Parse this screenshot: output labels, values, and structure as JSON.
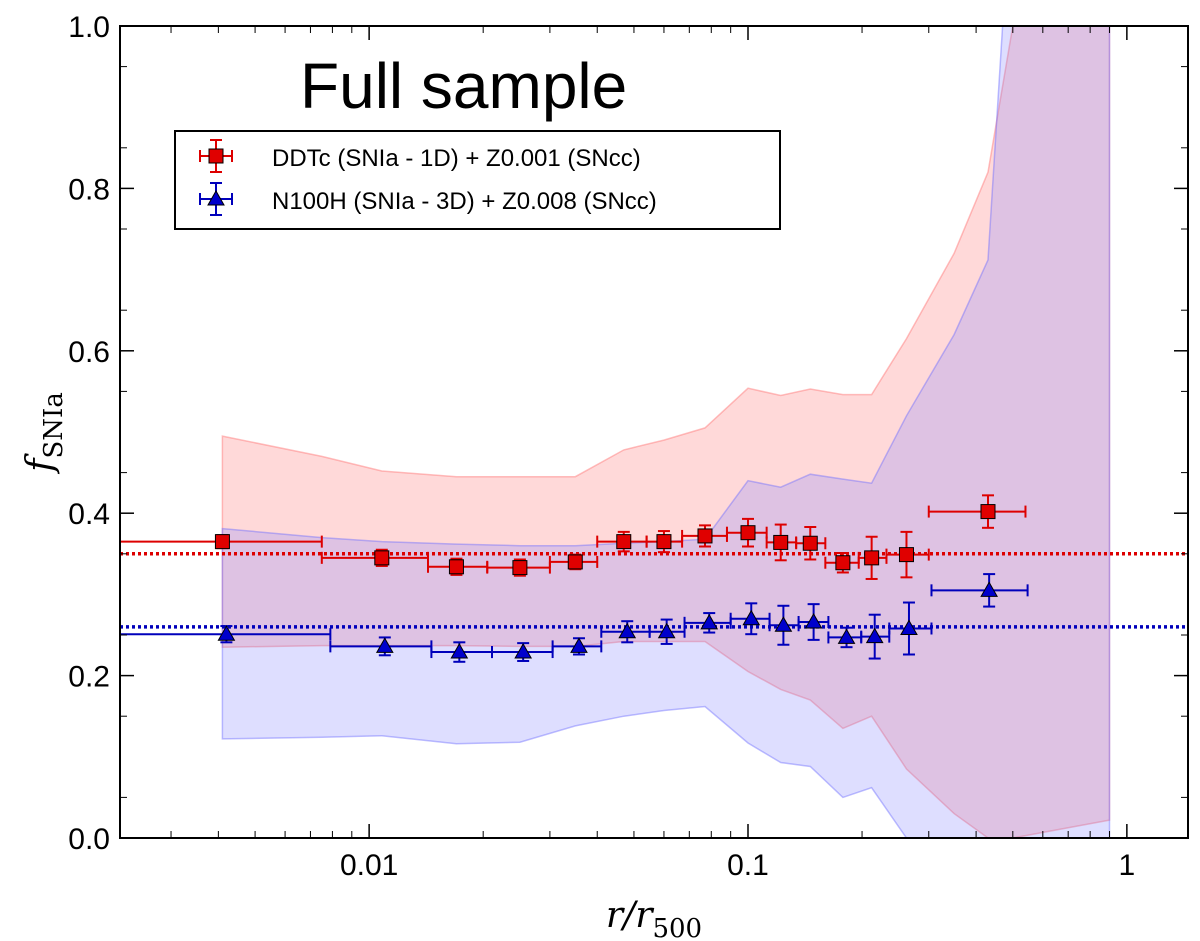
{
  "chart_data": {
    "type": "scatter",
    "title": "Full sample",
    "xlabel": {
      "main": "r/r",
      "sub": "500"
    },
    "ylabel": {
      "main": "f",
      "sub": "SNIa"
    },
    "xscale": "log",
    "xlim": [
      0.0022,
      1.45
    ],
    "ylim": [
      0.0,
      1.0
    ],
    "xticks": [
      {
        "value": 0.01,
        "label": "0.01"
      },
      {
        "value": 0.1,
        "label": "0.1"
      },
      {
        "value": 1,
        "label": "1"
      }
    ],
    "yticks": [
      {
        "value": 0.0,
        "label": "0.0"
      },
      {
        "value": 0.2,
        "label": "0.2"
      },
      {
        "value": 0.4,
        "label": "0.4"
      },
      {
        "value": 0.6,
        "label": "0.6"
      },
      {
        "value": 0.8,
        "label": "0.8"
      },
      {
        "value": 1.0,
        "label": "1.0"
      }
    ],
    "legend_position": "top-left",
    "series": [
      {
        "name": "DDTc (SNIa - 1D) + Z0.001 (SNcc)",
        "color": "#dd0000",
        "fill": "#e00000",
        "marker": "square",
        "mean_line": 0.35,
        "points": [
          {
            "x": 0.0041,
            "y": 0.365,
            "xlo": 0.002,
            "xhi": 0.0075,
            "yerr": 0.008
          },
          {
            "x": 0.0108,
            "y": 0.345,
            "xlo": 0.0075,
            "xhi": 0.0143,
            "yerr": 0.01
          },
          {
            "x": 0.017,
            "y": 0.334,
            "xlo": 0.0143,
            "xhi": 0.0205,
            "yerr": 0.01
          },
          {
            "x": 0.025,
            "y": 0.333,
            "xlo": 0.0205,
            "xhi": 0.03,
            "yerr": 0.01
          },
          {
            "x": 0.035,
            "y": 0.34,
            "xlo": 0.03,
            "xhi": 0.04,
            "yerr": 0.009
          },
          {
            "x": 0.047,
            "y": 0.365,
            "xlo": 0.04,
            "xhi": 0.054,
            "yerr": 0.012
          },
          {
            "x": 0.06,
            "y": 0.365,
            "xlo": 0.054,
            "xhi": 0.067,
            "yerr": 0.013
          },
          {
            "x": 0.077,
            "y": 0.372,
            "xlo": 0.067,
            "xhi": 0.088,
            "yerr": 0.013
          },
          {
            "x": 0.1,
            "y": 0.376,
            "xlo": 0.088,
            "xhi": 0.112,
            "yerr": 0.017
          },
          {
            "x": 0.122,
            "y": 0.364,
            "xlo": 0.112,
            "xhi": 0.134,
            "yerr": 0.022
          },
          {
            "x": 0.146,
            "y": 0.363,
            "xlo": 0.134,
            "xhi": 0.16,
            "yerr": 0.02
          },
          {
            "x": 0.178,
            "y": 0.339,
            "xlo": 0.16,
            "xhi": 0.196,
            "yerr": 0.012
          },
          {
            "x": 0.212,
            "y": 0.345,
            "xlo": 0.196,
            "xhi": 0.232,
            "yerr": 0.026
          },
          {
            "x": 0.262,
            "y": 0.349,
            "xlo": 0.232,
            "xhi": 0.3,
            "yerr": 0.028
          },
          {
            "x": 0.43,
            "y": 0.402,
            "xlo": 0.3,
            "xhi": 0.54,
            "yerr": 0.02
          }
        ],
        "band": {
          "x": [
            0.0041,
            0.0075,
            0.0108,
            0.017,
            0.025,
            0.035,
            0.047,
            0.06,
            0.077,
            0.1,
            0.122,
            0.146,
            0.178,
            0.212,
            0.262,
            0.35,
            0.43,
            0.5,
            0.9
          ],
          "upper": [
            0.495,
            0.47,
            0.452,
            0.445,
            0.445,
            0.445,
            0.478,
            0.49,
            0.505,
            0.554,
            0.545,
            0.553,
            0.546,
            0.546,
            0.615,
            0.72,
            0.82,
            1.0,
            1.0
          ],
          "lower": [
            0.235,
            0.237,
            0.237,
            0.237,
            0.236,
            0.236,
            0.242,
            0.242,
            0.242,
            0.205,
            0.183,
            0.17,
            0.135,
            0.15,
            0.085,
            0.03,
            0.0,
            0.0,
            0.022
          ]
        }
      },
      {
        "name": "N100H (SNIa - 3D) + Z0.008 (SNcc)",
        "color": "#0000bb",
        "fill": "#0000cc",
        "marker": "triangle",
        "mean_line": 0.26,
        "points": [
          {
            "x": 0.0042,
            "y": 0.251,
            "xlo": 0.002,
            "xhi": 0.0079,
            "yerr": 0.01
          },
          {
            "x": 0.011,
            "y": 0.236,
            "xlo": 0.0079,
            "xhi": 0.0146,
            "yerr": 0.011
          },
          {
            "x": 0.0173,
            "y": 0.229,
            "xlo": 0.0146,
            "xhi": 0.0211,
            "yerr": 0.012
          },
          {
            "x": 0.0255,
            "y": 0.229,
            "xlo": 0.0211,
            "xhi": 0.0305,
            "yerr": 0.011
          },
          {
            "x": 0.0358,
            "y": 0.236,
            "xlo": 0.0305,
            "xhi": 0.041,
            "yerr": 0.01
          },
          {
            "x": 0.048,
            "y": 0.254,
            "xlo": 0.041,
            "xhi": 0.055,
            "yerr": 0.013
          },
          {
            "x": 0.061,
            "y": 0.254,
            "xlo": 0.055,
            "xhi": 0.068,
            "yerr": 0.015
          },
          {
            "x": 0.079,
            "y": 0.265,
            "xlo": 0.068,
            "xhi": 0.09,
            "yerr": 0.012
          },
          {
            "x": 0.102,
            "y": 0.27,
            "xlo": 0.09,
            "xhi": 0.114,
            "yerr": 0.019
          },
          {
            "x": 0.124,
            "y": 0.262,
            "xlo": 0.114,
            "xhi": 0.136,
            "yerr": 0.024
          },
          {
            "x": 0.149,
            "y": 0.266,
            "xlo": 0.136,
            "xhi": 0.163,
            "yerr": 0.022
          },
          {
            "x": 0.182,
            "y": 0.247,
            "xlo": 0.163,
            "xhi": 0.199,
            "yerr": 0.012
          },
          {
            "x": 0.216,
            "y": 0.248,
            "xlo": 0.199,
            "xhi": 0.236,
            "yerr": 0.027
          },
          {
            "x": 0.266,
            "y": 0.258,
            "xlo": 0.236,
            "xhi": 0.305,
            "yerr": 0.032
          },
          {
            "x": 0.433,
            "y": 0.305,
            "xlo": 0.305,
            "xhi": 0.547,
            "yerr": 0.02
          }
        ],
        "band": {
          "x": [
            0.0041,
            0.0075,
            0.0108,
            0.017,
            0.025,
            0.035,
            0.047,
            0.06,
            0.077,
            0.1,
            0.122,
            0.146,
            0.178,
            0.212,
            0.262,
            0.35,
            0.43,
            0.47,
            0.9
          ],
          "upper": [
            0.381,
            0.37,
            0.365,
            0.362,
            0.36,
            0.36,
            0.363,
            0.365,
            0.368,
            0.44,
            0.432,
            0.448,
            0.442,
            0.437,
            0.52,
            0.62,
            0.712,
            1.0,
            1.0
          ],
          "lower": [
            0.122,
            0.124,
            0.126,
            0.116,
            0.118,
            0.138,
            0.15,
            0.157,
            0.162,
            0.117,
            0.093,
            0.088,
            0.05,
            0.062,
            0.0,
            0.0,
            0.0,
            0.0,
            0.0
          ]
        }
      }
    ]
  }
}
